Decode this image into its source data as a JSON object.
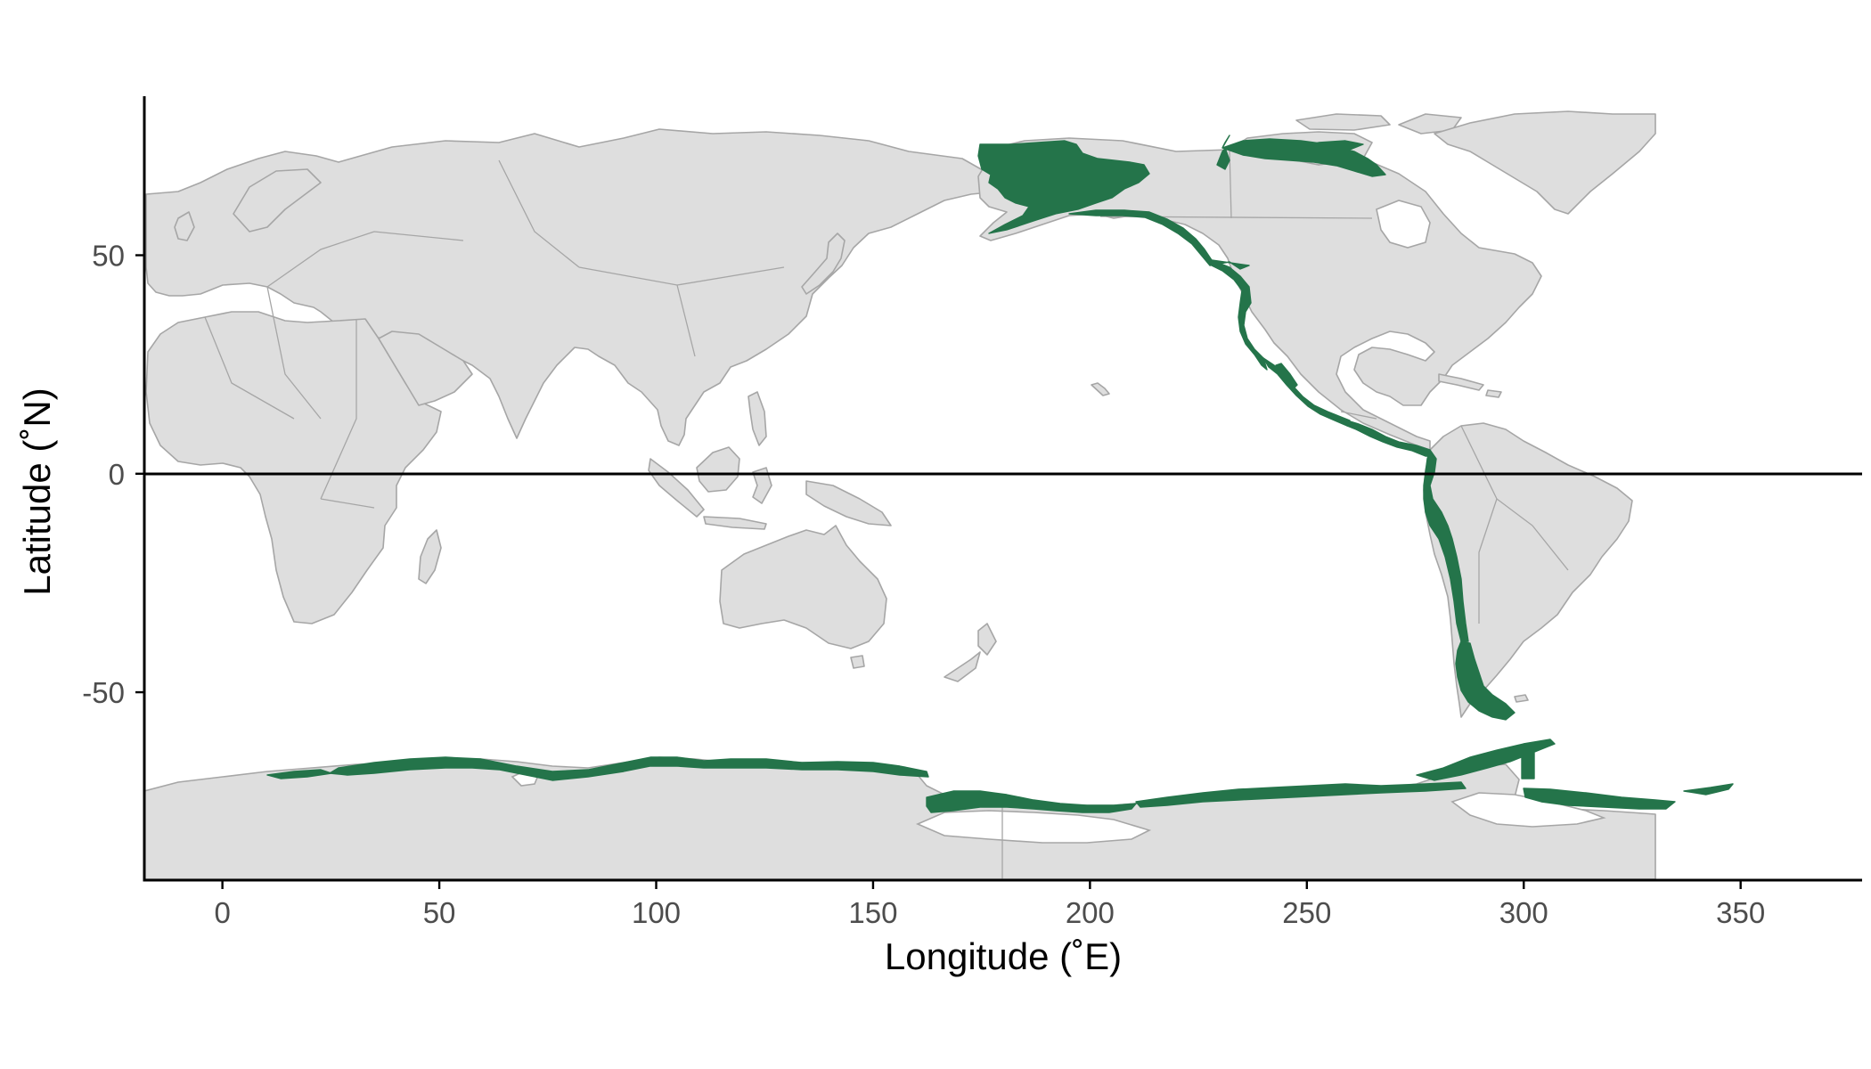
{
  "chart_data": {
    "type": "map",
    "xlabel": "Longitude (˚E)",
    "ylabel": "Latitude (˚N)",
    "xlim": [
      -18,
      378
    ],
    "ylim": [
      -93,
      87
    ],
    "x_ticks": [
      0,
      50,
      100,
      150,
      200,
      250,
      300,
      350
    ],
    "y_ticks": [
      -50,
      0,
      50
    ],
    "reference_line_y": 0,
    "grid": false,
    "legend": "none",
    "colors": {
      "land_fill": "#dedede",
      "land_border": "#a6a6a6",
      "habitat_fill": "#24744a",
      "axis": "#000000"
    },
    "highlighted_regions": [
      "Alaska and Yukon",
      "Canadian Arctic Archipelago",
      "Pacific coast of North America",
      "Pacific coast of Central America",
      "Andes and Pacific coast of South America",
      "Patagonia",
      "Antarctic coast",
      "Antarctic Peninsula"
    ]
  }
}
